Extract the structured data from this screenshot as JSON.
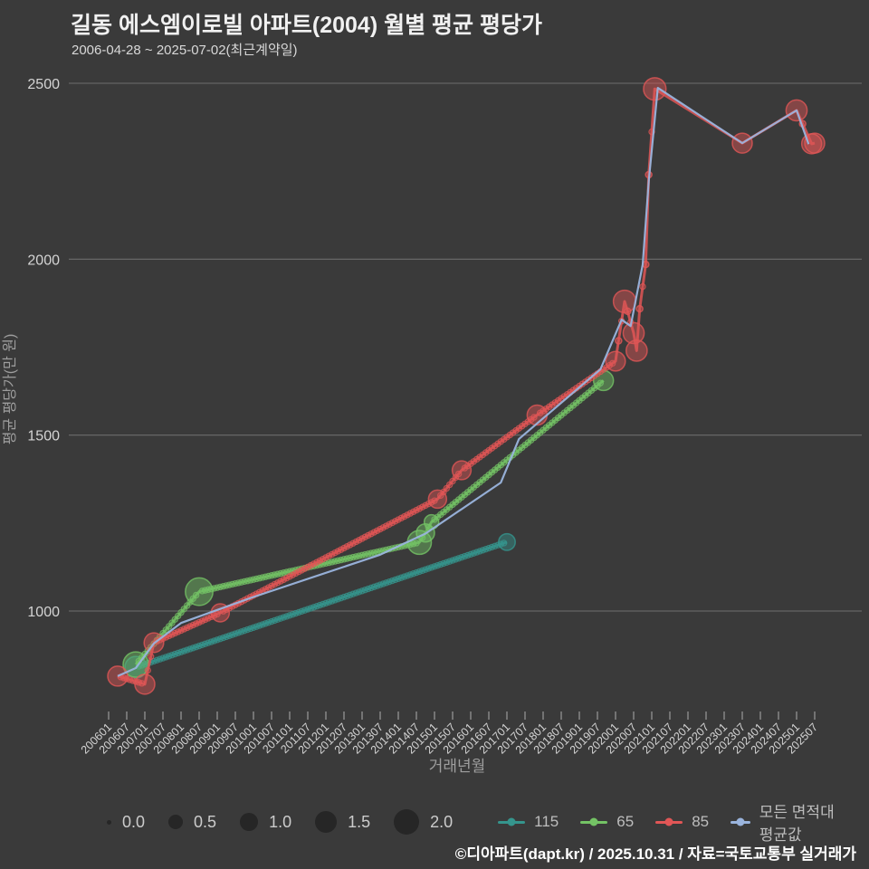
{
  "header": {
    "title": "길동 에스엠이로빌 아파트(2004) 월별 평균 평당가",
    "subtitle": "2006-04-28 ~ 2025-07-02(최근계약일)"
  },
  "footer": {
    "credit": "©디아파트(dapt.kr) / 2025.10.31 / 자료=국토교통부 실거래가"
  },
  "colors": {
    "background": "#3a3a3a",
    "grid": "#6d6d6d",
    "tick_text": "#d4d4d4",
    "axis_title": "#9e9e9e",
    "tick_mark": "#9a9a9a",
    "legend_text": "#bdbdbd",
    "size_circle": "#262626",
    "teal": "#35958d",
    "green": "#74c365",
    "red": "#e15656",
    "avg_blue": "#9ab4dd",
    "title_text": "#f1f1f1",
    "footer_text": "#ffffff"
  },
  "legend": {
    "sizes": [
      "0.0",
      "0.5",
      "1.0",
      "1.5",
      "2.0"
    ]
  },
  "chart_data": {
    "type": "scatter",
    "title": "길동 에스엠이로빌 아파트(2004) 월별 평균 평당가",
    "xlabel": "거래년월",
    "ylabel": "평균 평당가(만 원)",
    "grid": true,
    "legend_position": "bottom",
    "ylim": [
      780,
      2550
    ],
    "y_ticks": [
      1000,
      1500,
      2000,
      2500
    ],
    "x_ticks": [
      "200601",
      "200607",
      "200701",
      "200707",
      "200801",
      "200807",
      "200901",
      "200907",
      "201001",
      "201007",
      "201101",
      "201107",
      "201201",
      "201207",
      "201301",
      "201307",
      "201401",
      "201407",
      "201501",
      "201507",
      "201601",
      "201607",
      "201701",
      "201707",
      "201801",
      "201807",
      "201901",
      "201907",
      "202001",
      "202007",
      "202101",
      "202107",
      "202201",
      "202207",
      "202301",
      "202307",
      "202401",
      "202407",
      "202501",
      "202507"
    ],
    "size_legend_values": [
      0.0,
      0.5,
      1.0,
      1.5,
      2.0
    ],
    "series": [
      {
        "name": "115",
        "color_key": "teal",
        "chain": true,
        "points": [
          [
            "200610",
            840,
            1.5
          ],
          [
            "201701",
            1196,
            0.8
          ]
        ]
      },
      {
        "name": "65",
        "color_key": "green",
        "chain": true,
        "points": [
          [
            "200610",
            848,
            2.0
          ],
          [
            "200807",
            1055,
            2.3
          ],
          [
            "201408",
            1195,
            1.8
          ],
          [
            "201410",
            1222,
            1.0
          ],
          [
            "201412",
            1253,
            0.5
          ],
          [
            "201909",
            1655,
            1.25
          ]
        ]
      },
      {
        "name": "85",
        "color_key": "red",
        "chain": true,
        "chain_stop": "202102",
        "points": [
          [
            "200604",
            815,
            1.25
          ],
          [
            "200701",
            792,
            1.25
          ],
          [
            "200704",
            910,
            1.2
          ],
          [
            "200902",
            995,
            1.0
          ],
          [
            "201502",
            1318,
            1.0
          ],
          [
            "201510",
            1400,
            1.1
          ],
          [
            "201711",
            1557,
            1.25
          ],
          [
            "202001",
            1710,
            1.2
          ],
          [
            "202002",
            1768,
            0.1
          ],
          [
            "202004",
            1880,
            1.6
          ],
          [
            "202005",
            1852,
            0.1
          ],
          [
            "202007",
            1790,
            1.4
          ],
          [
            "202008",
            1740,
            1.4
          ],
          [
            "202009",
            1859,
            0.1
          ],
          [
            "202011",
            1985,
            0.1
          ],
          [
            "202012",
            2240,
            0.1
          ],
          [
            "202102",
            2484,
            1.6
          ],
          [
            "202307",
            2330,
            1.25
          ],
          [
            "202501",
            2423,
            1.4
          ],
          [
            "202503",
            2385,
            0.1
          ],
          [
            "202506",
            2328,
            1.25
          ],
          [
            "202507",
            2330,
            1.25
          ]
        ]
      },
      {
        "name": "모든 면적대 평균값",
        "color_key": "avg_blue",
        "line_only": true,
        "points": [
          [
            "200604",
            815
          ],
          [
            "200610",
            838
          ],
          [
            "200704",
            908
          ],
          [
            "200801",
            966
          ],
          [
            "201001",
            1040
          ],
          [
            "201307",
            1160
          ],
          [
            "201410",
            1220
          ],
          [
            "201611",
            1365
          ],
          [
            "201705",
            1489
          ],
          [
            "201908",
            1687
          ],
          [
            "202003",
            1828
          ],
          [
            "202006",
            1810
          ],
          [
            "202010",
            1985
          ],
          [
            "202012",
            2222
          ],
          [
            "202103",
            2487
          ],
          [
            "202307",
            2330
          ],
          [
            "202501",
            2423
          ],
          [
            "202505",
            2327
          ]
        ]
      }
    ]
  }
}
